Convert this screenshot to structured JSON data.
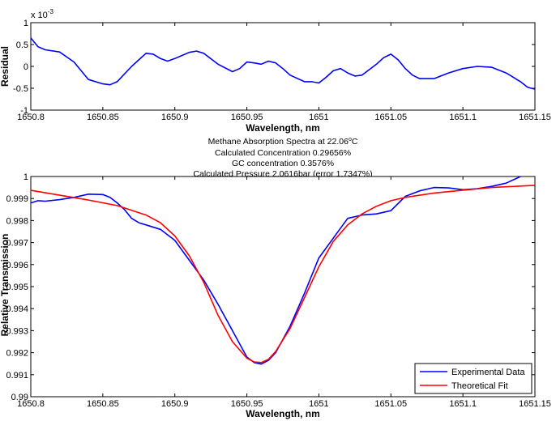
{
  "chart_data": [
    {
      "type": "line",
      "xlabel": "Wavelength, nm",
      "ylabel": "Residual",
      "exponent_label": "x 10",
      "exponent_power": "-3",
      "xlim": [
        1650.8,
        1651.15
      ],
      "ylim": [
        -1,
        1
      ],
      "xticks": [
        "1650.8",
        "1650.85",
        "1650.9",
        "1650.95",
        "1651",
        "1651.05",
        "1651.1",
        "1651.15"
      ],
      "yticks": [
        "1",
        "0.5",
        "0",
        "-0.5",
        "-1"
      ],
      "series": [
        {
          "color": "#0000ff",
          "x": [
            1650.8,
            1650.805,
            1650.81,
            1650.82,
            1650.83,
            1650.84,
            1650.85,
            1650.855,
            1650.86,
            1650.87,
            1650.875,
            1650.88,
            1650.885,
            1650.89,
            1650.895,
            1650.9,
            1650.905,
            1650.91,
            1650.915,
            1650.92,
            1650.93,
            1650.94,
            1650.945,
            1650.95,
            1650.955,
            1650.96,
            1650.965,
            1650.97,
            1650.975,
            1650.98,
            1650.99,
            1650.995,
            1651.0,
            1651.005,
            1651.01,
            1651.015,
            1651.02,
            1651.025,
            1651.03,
            1651.04,
            1651.045,
            1651.05,
            1651.055,
            1651.06,
            1651.065,
            1651.07,
            1651.08,
            1651.09,
            1651.1,
            1651.11,
            1651.12,
            1651.13,
            1651.14,
            1651.145,
            1651.15
          ],
          "y": [
            0.65,
            0.45,
            0.38,
            0.33,
            0.1,
            -0.3,
            -0.4,
            -0.42,
            -0.35,
            0.0,
            0.15,
            0.3,
            0.28,
            0.18,
            0.12,
            0.18,
            0.25,
            0.32,
            0.35,
            0.3,
            0.05,
            -0.12,
            -0.05,
            0.1,
            0.08,
            0.05,
            0.12,
            0.08,
            -0.05,
            -0.2,
            -0.35,
            -0.35,
            -0.38,
            -0.25,
            -0.1,
            -0.05,
            -0.15,
            -0.22,
            -0.2,
            0.05,
            0.2,
            0.28,
            0.15,
            -0.05,
            -0.2,
            -0.28,
            -0.28,
            -0.15,
            -0.05,
            0.0,
            -0.02,
            -0.15,
            -0.35,
            -0.48,
            -0.52
          ]
        }
      ]
    },
    {
      "type": "line",
      "title_lines": [
        "Methane Absorption Spectra at 22.06",
        "Calculated Concentration 0.29656%",
        "GC concentration 0.3576%",
        "Calculated Pressure 2.0616bar (error 1.7347%)"
      ],
      "title_superscript": "o",
      "title_unit": "C",
      "xlabel": "Wavelength, nm",
      "ylabel": "Relative Transmission",
      "xlim": [
        1650.8,
        1651.15
      ],
      "ylim": [
        0.99,
        1
      ],
      "xticks": [
        "1650.8",
        "1650.85",
        "1650.9",
        "1650.95",
        "1651",
        "1651.05",
        "1651.1",
        "1651.15"
      ],
      "yticks": [
        "1",
        "0.999",
        "0.998",
        "0.997",
        "0.996",
        "0.995",
        "0.994",
        "0.993",
        "0.992",
        "0.991",
        "0.99"
      ],
      "legend_position": "bottom-right",
      "series": [
        {
          "name": "Experimental Data",
          "color": "#0000ff",
          "x": [
            1650.8,
            1650.805,
            1650.81,
            1650.82,
            1650.83,
            1650.84,
            1650.85,
            1650.855,
            1650.86,
            1650.865,
            1650.87,
            1650.875,
            1650.88,
            1650.89,
            1650.9,
            1650.91,
            1650.92,
            1650.93,
            1650.94,
            1650.945,
            1650.95,
            1650.955,
            1650.96,
            1650.965,
            1650.97,
            1650.98,
            1650.99,
            1651.0,
            1651.01,
            1651.02,
            1651.03,
            1651.04,
            1651.05,
            1651.06,
            1651.07,
            1651.08,
            1651.09,
            1651.1,
            1651.11,
            1651.12,
            1651.13,
            1651.14
          ],
          "y": [
            0.9988,
            0.9989,
            0.99888,
            0.99895,
            0.99905,
            0.9992,
            0.99918,
            0.99905,
            0.9988,
            0.9985,
            0.9981,
            0.9979,
            0.9978,
            0.9976,
            0.9971,
            0.9962,
            0.9953,
            0.9942,
            0.993,
            0.9924,
            0.9918,
            0.99155,
            0.99148,
            0.99165,
            0.992,
            0.9932,
            0.9947,
            0.9963,
            0.9972,
            0.9981,
            0.99825,
            0.9983,
            0.99845,
            0.9991,
            0.99935,
            0.9995,
            0.99948,
            0.9994,
            0.99945,
            0.99955,
            0.9997,
            1.0
          ]
        },
        {
          "name": "Theoretical Fit",
          "color": "#ff0000",
          "x": [
            1650.8,
            1650.82,
            1650.84,
            1650.86,
            1650.88,
            1650.89,
            1650.9,
            1650.91,
            1650.92,
            1650.93,
            1650.94,
            1650.95,
            1650.955,
            1650.96,
            1650.965,
            1650.97,
            1650.98,
            1650.99,
            1651.0,
            1651.01,
            1651.02,
            1651.03,
            1651.04,
            1651.05,
            1651.06,
            1651.08,
            1651.1,
            1651.12,
            1651.15
          ],
          "y": [
            0.99937,
            0.99915,
            0.99893,
            0.99868,
            0.99825,
            0.9979,
            0.9973,
            0.9964,
            0.9952,
            0.9937,
            0.9925,
            0.99175,
            0.99158,
            0.99155,
            0.9917,
            0.99205,
            0.9931,
            0.9945,
            0.9959,
            0.99705,
            0.9978,
            0.9983,
            0.99865,
            0.9989,
            0.99905,
            0.99925,
            0.99938,
            0.9995,
            0.9996
          ]
        }
      ]
    }
  ]
}
